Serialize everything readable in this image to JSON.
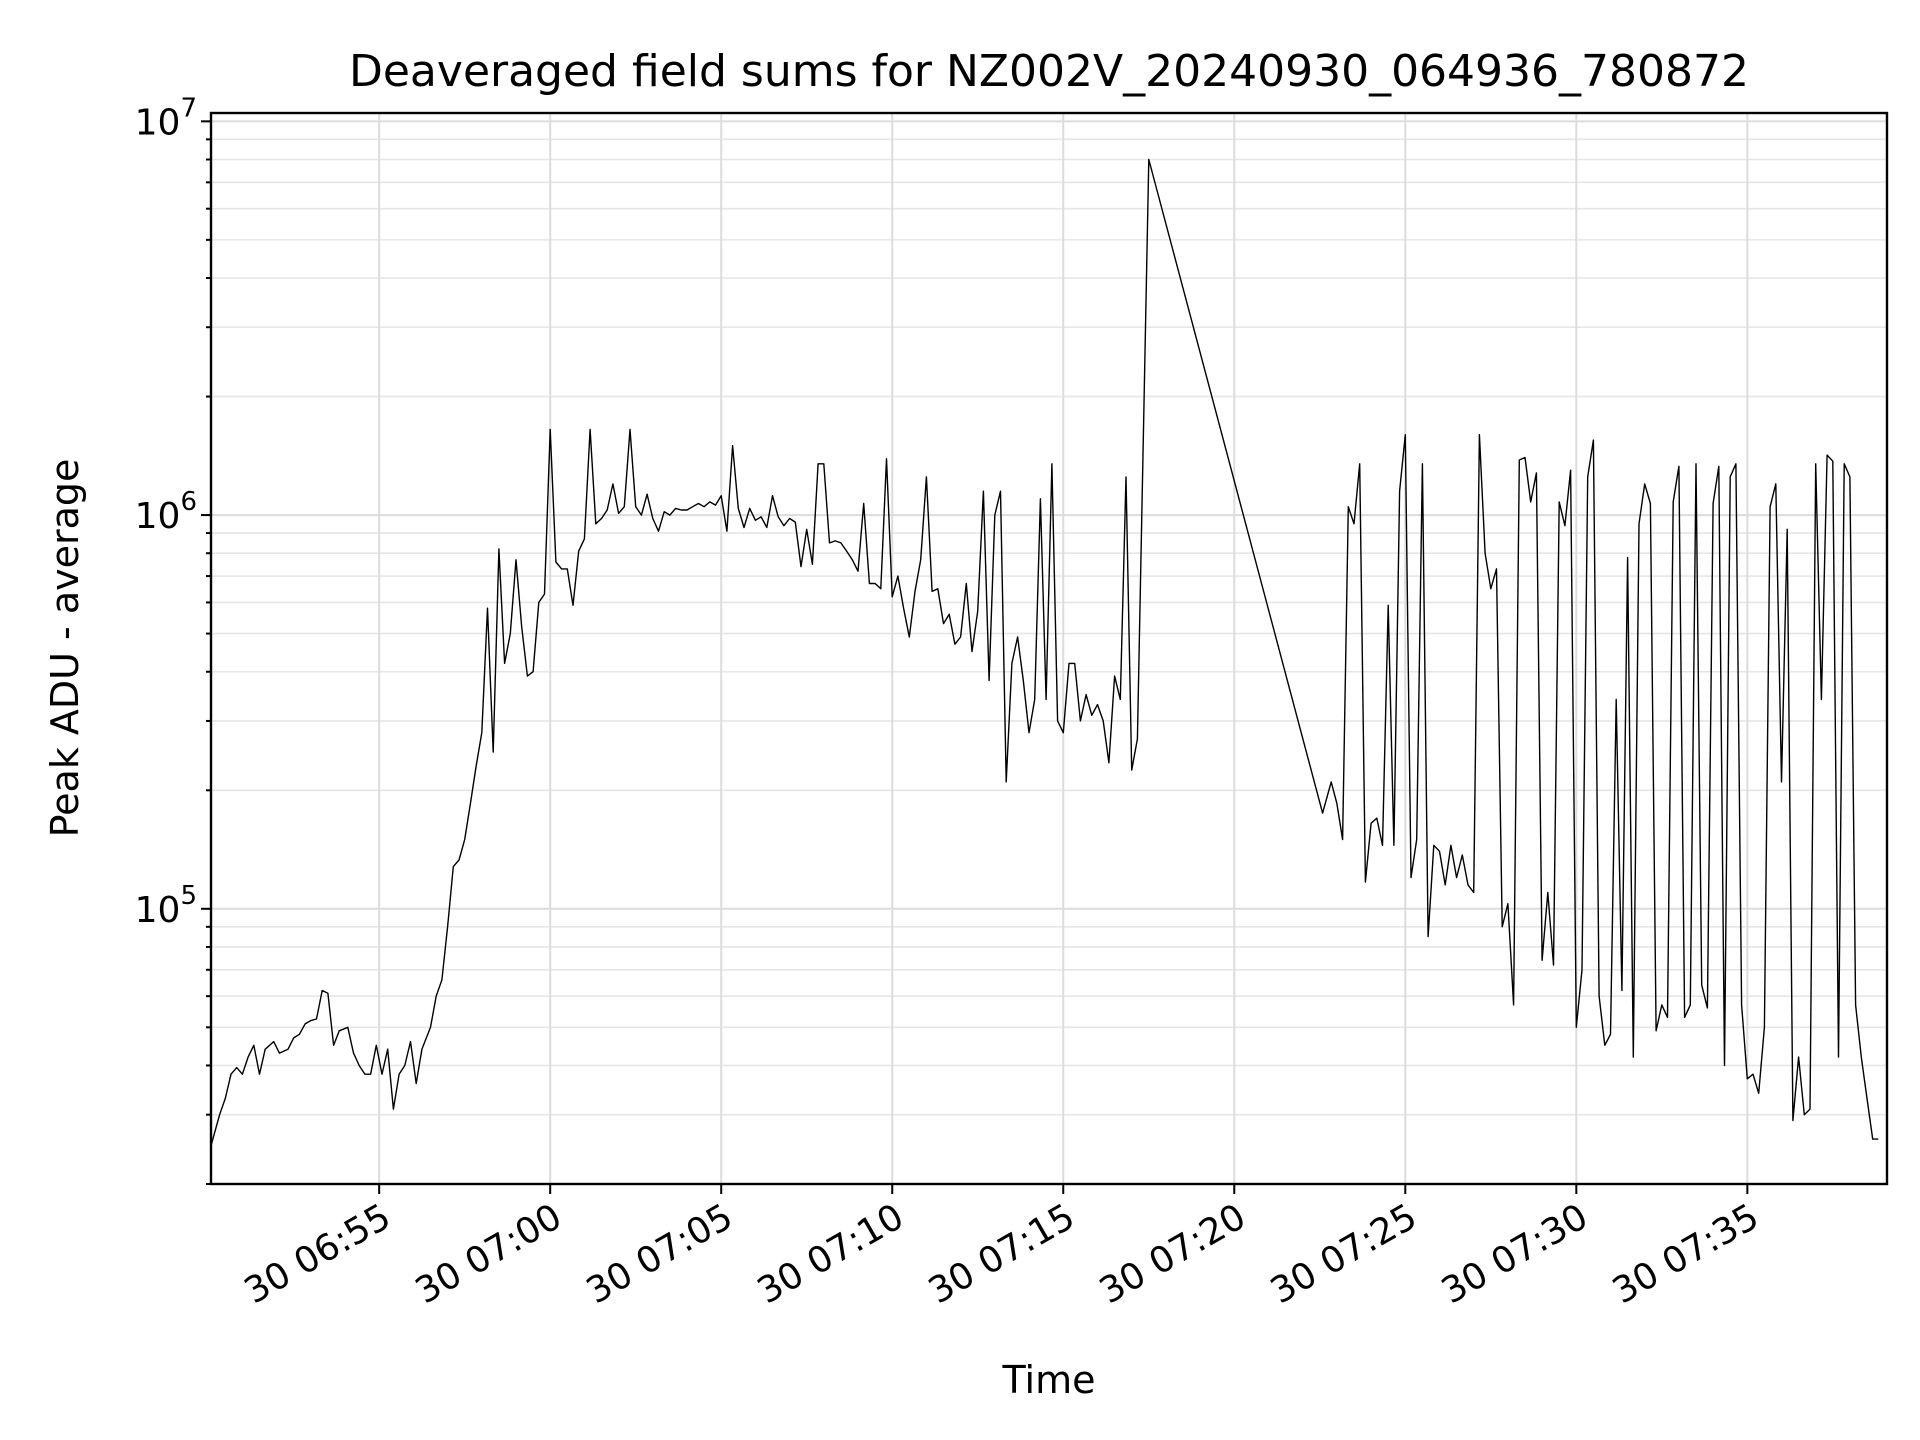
{
  "chart_data": {
    "type": "line",
    "title": "Deaveraged field sums for NZ002V_20240930_064936_780872",
    "xlabel": "Time",
    "ylabel": "Peak ADU - average",
    "yscale": "log",
    "grid": true,
    "x_unit": "time (HH:MM on day 30)",
    "xlim": [
      "06:50:05",
      "07:39:05"
    ],
    "ylim": [
      20000,
      10500000
    ],
    "x_ticks": [
      {
        "t": "06:55",
        "label": "30 06:55"
      },
      {
        "t": "07:00",
        "label": "30 07:00"
      },
      {
        "t": "07:05",
        "label": "30 07:05"
      },
      {
        "t": "07:10",
        "label": "30 07:10"
      },
      {
        "t": "07:15",
        "label": "30 07:15"
      },
      {
        "t": "07:20",
        "label": "30 07:20"
      },
      {
        "t": "07:25",
        "label": "30 07:25"
      },
      {
        "t": "07:30",
        "label": "30 07:30"
      },
      {
        "t": "07:35",
        "label": "30 07:35"
      }
    ],
    "y_ticks": [
      {
        "value": 100000,
        "base": "10",
        "exp": "5"
      },
      {
        "value": 1000000,
        "base": "10",
        "exp": "6"
      },
      {
        "value": 10000000,
        "base": "10",
        "exp": "7"
      }
    ],
    "series": [
      {
        "color": "#000000",
        "points": [
          [
            "06:50:05",
            25000
          ],
          [
            "06:50:20",
            30000
          ],
          [
            "06:50:30",
            33000
          ],
          [
            "06:50:40",
            38000
          ],
          [
            "06:50:50",
            39500
          ],
          [
            "06:51:00",
            38000
          ],
          [
            "06:51:10",
            42000
          ],
          [
            "06:51:20",
            45000
          ],
          [
            "06:51:30",
            38000
          ],
          [
            "06:51:40",
            44000
          ],
          [
            "06:51:55",
            46000
          ],
          [
            "06:52:05",
            43000
          ],
          [
            "06:52:20",
            44000
          ],
          [
            "06:52:30",
            47000
          ],
          [
            "06:52:40",
            48000
          ],
          [
            "06:52:50",
            51000
          ],
          [
            "06:53:00",
            52000
          ],
          [
            "06:53:10",
            52500
          ],
          [
            "06:53:20",
            62000
          ],
          [
            "06:53:30",
            61000
          ],
          [
            "06:53:40",
            45000
          ],
          [
            "06:53:50",
            49000
          ],
          [
            "06:54:05",
            50000
          ],
          [
            "06:54:15",
            43000
          ],
          [
            "06:54:25",
            40000
          ],
          [
            "06:54:35",
            38000
          ],
          [
            "06:54:45",
            38000
          ],
          [
            "06:54:55",
            45000
          ],
          [
            "06:55:05",
            38000
          ],
          [
            "06:55:15",
            44000
          ],
          [
            "06:55:25",
            31000
          ],
          [
            "06:55:35",
            38000
          ],
          [
            "06:55:45",
            40000
          ],
          [
            "06:55:55",
            46000
          ],
          [
            "06:56:05",
            36000
          ],
          [
            "06:56:15",
            44000
          ],
          [
            "06:56:30",
            50000
          ],
          [
            "06:56:40",
            60000
          ],
          [
            "06:56:50",
            66000
          ],
          [
            "06:57:00",
            90000
          ],
          [
            "06:57:10",
            128000
          ],
          [
            "06:57:20",
            133000
          ],
          [
            "06:57:30",
            150000
          ],
          [
            "06:57:40",
            185000
          ],
          [
            "06:57:50",
            230000
          ],
          [
            "06:58:00",
            280000
          ],
          [
            "06:58:10",
            580000
          ],
          [
            "06:58:20",
            250000
          ],
          [
            "06:58:30",
            820000
          ],
          [
            "06:58:40",
            420000
          ],
          [
            "06:58:50",
            500000
          ],
          [
            "06:59:00",
            770000
          ],
          [
            "06:59:10",
            520000
          ],
          [
            "06:59:20",
            390000
          ],
          [
            "06:59:30",
            400000
          ],
          [
            "06:59:40",
            600000
          ],
          [
            "06:59:50",
            630000
          ],
          [
            "07:00:00",
            1650000
          ],
          [
            "07:00:10",
            760000
          ],
          [
            "07:00:20",
            730000
          ],
          [
            "07:00:30",
            730000
          ],
          [
            "07:00:40",
            590000
          ],
          [
            "07:00:50",
            810000
          ],
          [
            "07:01:00",
            870000
          ],
          [
            "07:01:10",
            1650000
          ],
          [
            "07:01:20",
            950000
          ],
          [
            "07:01:30",
            980000
          ],
          [
            "07:01:40",
            1030000
          ],
          [
            "07:01:50",
            1200000
          ],
          [
            "07:02:00",
            1010000
          ],
          [
            "07:02:10",
            1050000
          ],
          [
            "07:02:20",
            1650000
          ],
          [
            "07:02:30",
            1050000
          ],
          [
            "07:02:40",
            1000000
          ],
          [
            "07:02:50",
            1130000
          ],
          [
            "07:03:00",
            980000
          ],
          [
            "07:03:10",
            910000
          ],
          [
            "07:03:20",
            1020000
          ],
          [
            "07:03:30",
            1000000
          ],
          [
            "07:03:40",
            1040000
          ],
          [
            "07:03:50",
            1030000
          ],
          [
            "07:04:00",
            1030000
          ],
          [
            "07:04:10",
            1050000
          ],
          [
            "07:04:20",
            1070000
          ],
          [
            "07:04:30",
            1050000
          ],
          [
            "07:04:40",
            1080000
          ],
          [
            "07:04:50",
            1060000
          ],
          [
            "07:05:00",
            1120000
          ],
          [
            "07:05:10",
            910000
          ],
          [
            "07:05:20",
            1500000
          ],
          [
            "07:05:30",
            1040000
          ],
          [
            "07:05:40",
            930000
          ],
          [
            "07:05:50",
            1040000
          ],
          [
            "07:06:00",
            970000
          ],
          [
            "07:06:10",
            990000
          ],
          [
            "07:06:20",
            930000
          ],
          [
            "07:06:30",
            1120000
          ],
          [
            "07:06:40",
            990000
          ],
          [
            "07:06:50",
            940000
          ],
          [
            "07:07:00",
            980000
          ],
          [
            "07:07:10",
            960000
          ],
          [
            "07:07:20",
            740000
          ],
          [
            "07:07:30",
            920000
          ],
          [
            "07:07:40",
            750000
          ],
          [
            "07:07:50",
            1350000
          ],
          [
            "07:08:00",
            1350000
          ],
          [
            "07:08:10",
            850000
          ],
          [
            "07:08:20",
            860000
          ],
          [
            "07:08:30",
            850000
          ],
          [
            "07:08:40",
            810000
          ],
          [
            "07:08:50",
            770000
          ],
          [
            "07:09:00",
            720000
          ],
          [
            "07:09:10",
            1070000
          ],
          [
            "07:09:20",
            670000
          ],
          [
            "07:09:30",
            670000
          ],
          [
            "07:09:40",
            650000
          ],
          [
            "07:09:50",
            1390000
          ],
          [
            "07:10:00",
            620000
          ],
          [
            "07:10:10",
            700000
          ],
          [
            "07:10:20",
            580000
          ],
          [
            "07:10:30",
            490000
          ],
          [
            "07:10:40",
            640000
          ],
          [
            "07:10:50",
            770000
          ],
          [
            "07:11:00",
            1250000
          ],
          [
            "07:11:10",
            640000
          ],
          [
            "07:11:20",
            650000
          ],
          [
            "07:11:30",
            530000
          ],
          [
            "07:11:40",
            560000
          ],
          [
            "07:11:50",
            470000
          ],
          [
            "07:12:00",
            490000
          ],
          [
            "07:12:10",
            670000
          ],
          [
            "07:12:20",
            450000
          ],
          [
            "07:12:30",
            570000
          ],
          [
            "07:12:40",
            1150000
          ],
          [
            "07:12:50",
            380000
          ],
          [
            "07:13:00",
            1000000
          ],
          [
            "07:13:10",
            1150000
          ],
          [
            "07:13:20",
            210000
          ],
          [
            "07:13:30",
            420000
          ],
          [
            "07:13:40",
            490000
          ],
          [
            "07:13:50",
            380000
          ],
          [
            "07:14:00",
            280000
          ],
          [
            "07:14:10",
            340000
          ],
          [
            "07:14:20",
            1100000
          ],
          [
            "07:14:30",
            340000
          ],
          [
            "07:14:40",
            1350000
          ],
          [
            "07:14:50",
            300000
          ],
          [
            "07:15:00",
            280000
          ],
          [
            "07:15:10",
            420000
          ],
          [
            "07:15:20",
            420000
          ],
          [
            "07:15:30",
            300000
          ],
          [
            "07:15:40",
            350000
          ],
          [
            "07:15:50",
            310000
          ],
          [
            "07:16:00",
            330000
          ],
          [
            "07:16:10",
            300000
          ],
          [
            "07:16:20",
            235000
          ],
          [
            "07:16:30",
            390000
          ],
          [
            "07:16:40",
            340000
          ],
          [
            "07:16:50",
            1250000
          ],
          [
            "07:17:00",
            225000
          ],
          [
            "07:17:10",
            270000
          ],
          [
            "07:17:30",
            8000000
          ],
          [
            "07:22:35",
            175000
          ],
          [
            "07:22:50",
            210000
          ],
          [
            "07:23:00",
            185000
          ],
          [
            "07:23:10",
            150000
          ],
          [
            "07:23:20",
            1050000
          ],
          [
            "07:23:30",
            950000
          ],
          [
            "07:23:40",
            1350000
          ],
          [
            "07:23:50",
            117000
          ],
          [
            "07:24:00",
            165000
          ],
          [
            "07:24:10",
            170000
          ],
          [
            "07:24:20",
            145000
          ],
          [
            "07:24:30",
            590000
          ],
          [
            "07:24:40",
            145000
          ],
          [
            "07:24:50",
            1150000
          ],
          [
            "07:25:00",
            1600000
          ],
          [
            "07:25:10",
            120000
          ],
          [
            "07:25:20",
            150000
          ],
          [
            "07:25:30",
            1350000
          ],
          [
            "07:25:40",
            85000
          ],
          [
            "07:25:50",
            145000
          ],
          [
            "07:26:00",
            140000
          ],
          [
            "07:26:10",
            115000
          ],
          [
            "07:26:20",
            145000
          ],
          [
            "07:26:30",
            120000
          ],
          [
            "07:26:40",
            137000
          ],
          [
            "07:26:50",
            115000
          ],
          [
            "07:27:00",
            110000
          ],
          [
            "07:27:10",
            1600000
          ],
          [
            "07:27:20",
            800000
          ],
          [
            "07:27:30",
            650000
          ],
          [
            "07:27:40",
            730000
          ],
          [
            "07:27:50",
            90000
          ],
          [
            "07:28:00",
            103000
          ],
          [
            "07:28:10",
            57000
          ],
          [
            "07:28:20",
            1380000
          ],
          [
            "07:28:30",
            1400000
          ],
          [
            "07:28:40",
            1080000
          ],
          [
            "07:28:50",
            1280000
          ],
          [
            "07:29:00",
            74000
          ],
          [
            "07:29:10",
            110000
          ],
          [
            "07:29:20",
            72000
          ],
          [
            "07:29:30",
            1080000
          ],
          [
            "07:29:40",
            940000
          ],
          [
            "07:29:50",
            1300000
          ],
          [
            "07:30:00",
            50000
          ],
          [
            "07:30:10",
            70000
          ],
          [
            "07:30:20",
            1250000
          ],
          [
            "07:30:30",
            1550000
          ],
          [
            "07:30:40",
            60000
          ],
          [
            "07:30:50",
            45000
          ],
          [
            "07:31:00",
            48000
          ],
          [
            "07:31:10",
            340000
          ],
          [
            "07:31:20",
            62000
          ],
          [
            "07:31:30",
            780000
          ],
          [
            "07:31:40",
            42000
          ],
          [
            "07:31:50",
            950000
          ],
          [
            "07:32:00",
            1200000
          ],
          [
            "07:32:10",
            1070000
          ],
          [
            "07:32:20",
            49000
          ],
          [
            "07:32:30",
            57000
          ],
          [
            "07:32:40",
            53000
          ],
          [
            "07:32:50",
            1080000
          ],
          [
            "07:33:00",
            1330000
          ],
          [
            "07:33:10",
            53000
          ],
          [
            "07:33:20",
            57000
          ],
          [
            "07:33:30",
            1350000
          ],
          [
            "07:33:40",
            64000
          ],
          [
            "07:33:50",
            56000
          ],
          [
            "07:34:00",
            1070000
          ],
          [
            "07:34:10",
            1330000
          ],
          [
            "07:34:20",
            40000
          ],
          [
            "07:34:30",
            1250000
          ],
          [
            "07:34:40",
            1350000
          ],
          [
            "07:34:50",
            57000
          ],
          [
            "07:35:00",
            37000
          ],
          [
            "07:35:10",
            38000
          ],
          [
            "07:35:20",
            34000
          ],
          [
            "07:35:30",
            50000
          ],
          [
            "07:35:40",
            1050000
          ],
          [
            "07:35:50",
            1200000
          ],
          [
            "07:36:00",
            210000
          ],
          [
            "07:36:10",
            920000
          ],
          [
            "07:36:20",
            29000
          ],
          [
            "07:36:30",
            42000
          ],
          [
            "07:36:40",
            30000
          ],
          [
            "07:36:50",
            31000
          ],
          [
            "07:37:00",
            1350000
          ],
          [
            "07:37:10",
            340000
          ],
          [
            "07:37:20",
            1420000
          ],
          [
            "07:37:30",
            1370000
          ],
          [
            "07:37:40",
            42000
          ],
          [
            "07:37:50",
            1350000
          ],
          [
            "07:38:00",
            1250000
          ],
          [
            "07:38:10",
            57000
          ],
          [
            "07:38:20",
            42000
          ],
          [
            "07:38:30",
            33000
          ],
          [
            "07:38:40",
            26000
          ],
          [
            "07:38:50",
            26000
          ]
        ]
      }
    ]
  }
}
